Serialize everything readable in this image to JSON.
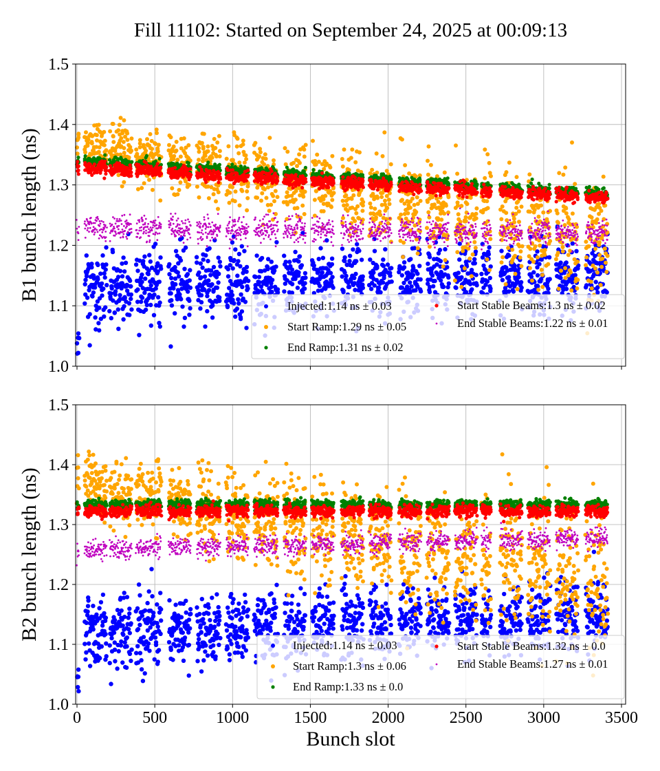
{
  "chart_data": {
    "title": "Fill 11102: Started on September 24, 2025 at 00:09:13",
    "xlabel": "Bunch slot",
    "xlim": [
      -20,
      3520
    ],
    "xticks": [
      0,
      500,
      1000,
      1500,
      2000,
      2500,
      3000,
      3500
    ],
    "grid": true,
    "colors": {
      "Injected": "#0000ff",
      "Start Ramp": "#ffa500",
      "End Ramp": "#008000",
      "Start Stable Beams": "#ff0000",
      "End Stable Beams": "#bf00bf"
    },
    "trains": [
      [
        0,
        12
      ],
      [
        50,
        190
      ],
      [
        210,
        350
      ],
      [
        380,
        540
      ],
      [
        590,
        730
      ],
      [
        770,
        920
      ],
      [
        960,
        1100
      ],
      [
        1140,
        1290
      ],
      [
        1330,
        1470
      ],
      [
        1510,
        1650
      ],
      [
        1700,
        1840
      ],
      [
        1880,
        2020
      ],
      [
        2070,
        2210
      ],
      [
        2250,
        2390
      ],
      [
        2430,
        2570
      ],
      [
        2600,
        2660
      ],
      [
        2720,
        2860
      ],
      [
        2900,
        3040
      ],
      [
        3080,
        3220
      ],
      [
        3270,
        3410
      ]
    ],
    "panels": [
      {
        "type": "scatter",
        "ylabel": "B1 bunch length (ns)",
        "ylim": [
          1.0,
          1.5
        ],
        "yticks": [
          "1.0",
          "1.1",
          "1.2",
          "1.3",
          "1.4",
          "1.5"
        ],
        "legend_placement": "lower-right",
        "legend": [
          "Injected:1.14 ns ± 0.03",
          "Start Ramp:1.29 ns ± 0.05",
          "End Ramp:1.31 ns ± 0.02",
          "Start Stable Beams:1.3 ns ± 0.02",
          "End Stable Beams:1.22 ns ± 0.01"
        ],
        "series": [
          {
            "name": "Injected",
            "mean_first_slot": 1.13,
            "mean_last_slot": 1.15,
            "std": 0.03
          },
          {
            "name": "Start Ramp",
            "mean_first_slot": 1.37,
            "mean_last_slot": 1.21,
            "std": 0.02
          },
          {
            "name": "End Ramp",
            "mean_first_slot": 1.34,
            "mean_last_slot": 1.285,
            "std": 0.004
          },
          {
            "name": "Start Stable Beams",
            "mean_first_slot": 1.33,
            "mean_last_slot": 1.277,
            "std": 0.005
          },
          {
            "name": "End Stable Beams",
            "mean_first_slot": 1.23,
            "mean_last_slot": 1.22,
            "std": 0.01
          }
        ]
      },
      {
        "type": "scatter",
        "ylabel": "B2 bunch length (ns)",
        "ylim": [
          1.0,
          1.5
        ],
        "yticks": [
          "1.0",
          "1.1",
          "1.2",
          "1.3",
          "1.4",
          "1.5"
        ],
        "legend_placement": "lower-right",
        "legend": [
          "Injected:1.14 ns ± 0.03",
          "Start Ramp:1.3 ns ± 0.06",
          "End Ramp:1.33 ns ± 0.0",
          "Start Stable Beams:1.32 ns ± 0.0",
          "End Stable Beams:1.27 ns ± 0.01"
        ],
        "series": [
          {
            "name": "Injected",
            "mean_first_slot": 1.12,
            "mean_last_slot": 1.15,
            "std": 0.03
          },
          {
            "name": "Start Ramp",
            "mean_first_slot": 1.37,
            "mean_last_slot": 1.2,
            "std": 0.025
          },
          {
            "name": "End Ramp",
            "mean_first_slot": 1.333,
            "mean_last_slot": 1.333,
            "std": 0.004
          },
          {
            "name": "Start Stable Beams",
            "mean_first_slot": 1.322,
            "mean_last_slot": 1.322,
            "std": 0.005
          },
          {
            "name": "End Stable Beams",
            "mean_first_slot": 1.258,
            "mean_last_slot": 1.278,
            "std": 0.008
          }
        ]
      }
    ]
  }
}
